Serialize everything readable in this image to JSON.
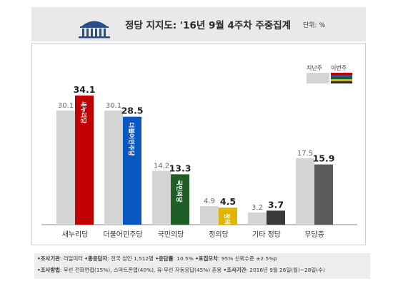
{
  "header": {
    "title": "정당 지지도: '16년 9월 4주차 주중집계",
    "unit": "단위: %"
  },
  "legend": {
    "prev_label": "지난주",
    "cur_label": "이번주",
    "cur_stripe_colors": [
      "#c00000",
      "#0b57c2",
      "#1f5f26",
      "#e0b400",
      "#2b2b2b"
    ]
  },
  "colors": {
    "prev_bar": "#d4d4d4",
    "party_colors": [
      "#c00000",
      "#0b57c2",
      "#1f5f26",
      "#e0b400",
      "#3a3a3a",
      "#5a5a5a"
    ]
  },
  "chart_data": {
    "type": "bar",
    "categories": [
      "새누리당",
      "더불어민주당",
      "국민의당",
      "정의당",
      "기타 정당",
      "무당층"
    ],
    "series": [
      {
        "name": "지난주",
        "values": [
          30.1,
          30.1,
          14.2,
          4.9,
          3.2,
          17.5
        ]
      },
      {
        "name": "이번주",
        "values": [
          34.1,
          28.5,
          13.3,
          4.5,
          3.7,
          15.9
        ]
      }
    ],
    "ylim": [
      0,
      40
    ],
    "grid": false,
    "legend_position": "top-right",
    "title": "정당 지지도: '16년 9월 4주차 주중집계"
  },
  "bar_labels": [
    "새누리당",
    "더불어민주당",
    "국민의당",
    "정의당"
  ],
  "notes": {
    "line1": [
      {
        "key": "조사기관",
        "value": "리얼미터"
      },
      {
        "key": "총응답자",
        "value": "전국 성인 1,512명"
      },
      {
        "key": "응답률",
        "value": "10.5%"
      },
      {
        "key": "표집오차",
        "value": "95% 신뢰수준 ±2.5%p"
      }
    ],
    "line2": [
      {
        "key": "조사방법",
        "value": "무선 전화면접(15%), 스마트폰앱(40%), 유·무선 자동응답(45%) 혼용"
      },
      {
        "key": "조사기간",
        "value": "2016년 9월 26일(월)~28일(수)"
      }
    ]
  }
}
